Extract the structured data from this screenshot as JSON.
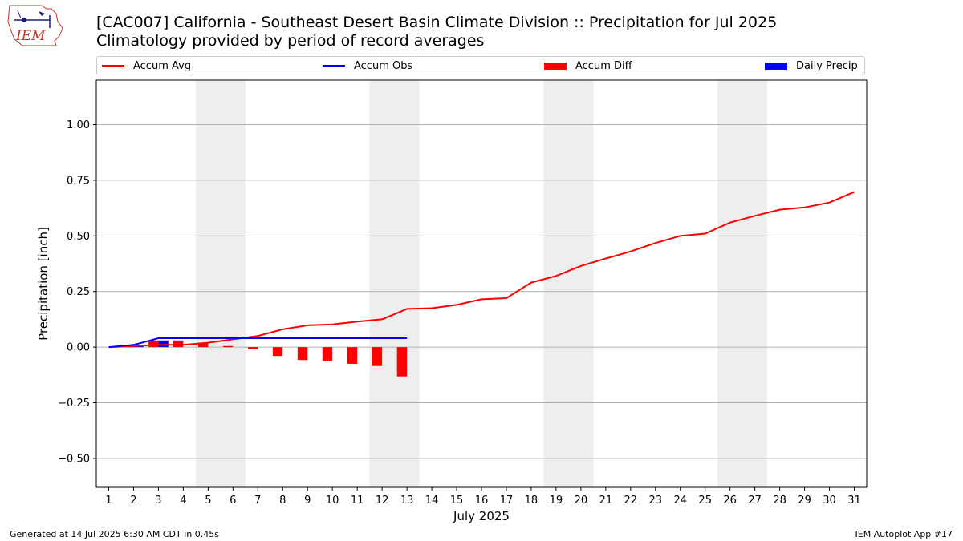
{
  "header": {
    "logo_text": "IEM",
    "title_line1": "[CAC007] California - Southeast Desert Basin Climate Division :: Precipitation for Jul 2025",
    "title_line2": "Climatology provided by period of record averages"
  },
  "legend": {
    "placement": "top",
    "items": [
      {
        "label": "Accum Avg",
        "color": "#ff0000",
        "kind": "line"
      },
      {
        "label": "Accum Obs",
        "color": "#0000ff",
        "kind": "line"
      },
      {
        "label": "Accum Diff",
        "color": "#ff0000",
        "kind": "bar"
      },
      {
        "label": "Daily Precip",
        "color": "#0000ff",
        "kind": "bar"
      }
    ]
  },
  "chart_data": {
    "type": "line",
    "xlabel": "July 2025",
    "ylabel": "Precipitation [inch]",
    "xlim": [
      0.5,
      31.5
    ],
    "ylim": [
      -0.63,
      1.2
    ],
    "yticks": [
      -0.5,
      -0.25,
      0.0,
      0.25,
      0.5,
      0.75,
      1.0
    ],
    "ytick_labels": [
      "−0.50",
      "−0.25",
      "0.00",
      "0.25",
      "0.50",
      "0.75",
      "1.00"
    ],
    "grid": "horizontal",
    "weekend_shading": [
      [
        4.5,
        6.5
      ],
      [
        11.5,
        13.5
      ],
      [
        18.5,
        20.5
      ],
      [
        25.5,
        27.5
      ]
    ],
    "days": [
      1,
      2,
      3,
      4,
      5,
      6,
      7,
      8,
      9,
      10,
      11,
      12,
      13,
      14,
      15,
      16,
      17,
      18,
      19,
      20,
      21,
      22,
      23,
      24,
      25,
      26,
      27,
      28,
      29,
      30,
      31
    ],
    "series": [
      {
        "name": "Accum Avg",
        "color": "#ff0000",
        "kind": "line",
        "x": [
          1,
          2,
          3,
          4,
          5,
          6,
          7,
          8,
          9,
          10,
          11,
          12,
          13,
          14,
          15,
          16,
          17,
          18,
          19,
          20,
          21,
          22,
          23,
          24,
          25,
          26,
          27,
          28,
          29,
          30,
          31
        ],
        "values": [
          0.0,
          0.005,
          0.01,
          0.01,
          0.02,
          0.035,
          0.05,
          0.08,
          0.098,
          0.102,
          0.115,
          0.125,
          0.172,
          0.175,
          0.19,
          0.215,
          0.22,
          0.29,
          0.32,
          0.365,
          0.398,
          0.43,
          0.468,
          0.5,
          0.51,
          0.56,
          0.59,
          0.618,
          0.628,
          0.65,
          0.697
        ]
      },
      {
        "name": "Accum Obs",
        "color": "#0000ff",
        "kind": "line",
        "x": [
          1,
          2,
          3,
          4,
          5,
          6,
          7,
          8,
          9,
          10,
          11,
          12,
          13
        ],
        "values": [
          0.0,
          0.01,
          0.04,
          0.04,
          0.04,
          0.04,
          0.04,
          0.04,
          0.04,
          0.04,
          0.04,
          0.04,
          0.04
        ]
      },
      {
        "name": "Accum Diff",
        "color": "#ff0000",
        "kind": "bar",
        "x": [
          1,
          2,
          3,
          4,
          5,
          6,
          7,
          8,
          9,
          10,
          11,
          12,
          13
        ],
        "values": [
          0.0,
          0.005,
          0.03,
          0.03,
          0.02,
          0.005,
          -0.01,
          -0.04,
          -0.058,
          -0.062,
          -0.075,
          -0.085,
          -0.132
        ]
      },
      {
        "name": "Daily Precip",
        "color": "#0000ff",
        "kind": "bar",
        "x": [
          1,
          2,
          3,
          4,
          5,
          6,
          7,
          8,
          9,
          10,
          11,
          12,
          13
        ],
        "values": [
          0.0,
          0.01,
          0.03,
          0.0,
          0.0,
          0.0,
          0.0,
          0.0,
          0.0,
          0.0,
          0.0,
          0.0,
          0.0
        ]
      }
    ]
  },
  "footer": {
    "left": "Generated at 14 Jul 2025 6:30 AM CDT in 0.45s",
    "right": "IEM Autoplot App #17"
  }
}
